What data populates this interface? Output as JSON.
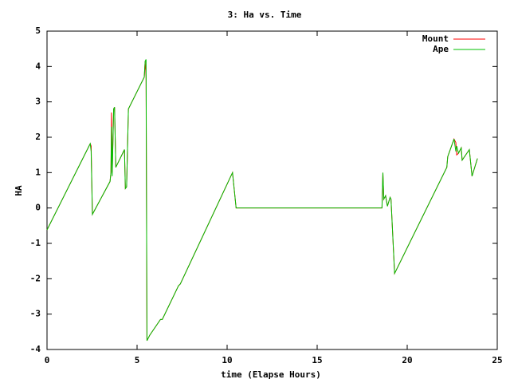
{
  "chart_data": {
    "type": "line",
    "title": "3: Ha vs. Time",
    "x_label": "time (Elapse Hours)",
    "y_label": "HA",
    "x": [
      0,
      2.4,
      2.45,
      2.52,
      3.5,
      3.55,
      3.58,
      3.62,
      3.7,
      3.75,
      3.82,
      4.3,
      4.35,
      4.42,
      4.52,
      5.4,
      5.45,
      5.5,
      5.55,
      5.7,
      6.3,
      6.4,
      7.3,
      7.4,
      10.3,
      10.5,
      18.6,
      18.65,
      18.7,
      18.8,
      18.9,
      19.05,
      19.1,
      19.3,
      22.2,
      22.25,
      22.6,
      22.7,
      22.75,
      22.85,
      23.0,
      23.05,
      23.45,
      23.6,
      23.9
    ],
    "series": [
      {
        "name": "Mount",
        "color": "#ff0000",
        "values": [
          -0.62,
          1.82,
          1.75,
          -0.18,
          0.75,
          1.0,
          2.7,
          1.0,
          2.8,
          2.85,
          1.15,
          1.65,
          0.55,
          0.6,
          2.8,
          3.7,
          4.15,
          3.7,
          -3.75,
          -3.6,
          -3.15,
          -3.15,
          -2.2,
          -2.15,
          1.0,
          0.0,
          0.0,
          1.0,
          0.25,
          0.35,
          0.05,
          0.3,
          0.25,
          -1.85,
          1.15,
          1.45,
          1.95,
          1.85,
          1.5,
          1.55,
          1.7,
          1.35,
          1.65,
          0.9,
          1.4
        ]
      },
      {
        "name": "Ape",
        "color": "#00c000",
        "values": [
          -0.62,
          1.82,
          1.6,
          -0.18,
          0.75,
          1.0,
          2.3,
          0.9,
          2.8,
          2.85,
          1.15,
          1.65,
          0.55,
          0.6,
          2.8,
          3.7,
          4.15,
          4.2,
          -3.75,
          -3.6,
          -3.15,
          -3.15,
          -2.2,
          -2.15,
          1.0,
          0.0,
          0.0,
          1.0,
          0.25,
          0.35,
          0.05,
          0.3,
          0.25,
          -1.85,
          1.15,
          1.45,
          1.95,
          1.6,
          1.75,
          1.55,
          1.7,
          1.35,
          1.65,
          0.9,
          1.4
        ]
      }
    ],
    "xlim": [
      0,
      25
    ],
    "xticks": [
      0,
      5,
      10,
      15,
      20,
      25
    ],
    "ylim": [
      -4,
      5
    ],
    "yticks": [
      -4,
      -3,
      -2,
      -1,
      0,
      1,
      2,
      3,
      4,
      5
    ],
    "grid": false,
    "legend": "top-right"
  }
}
